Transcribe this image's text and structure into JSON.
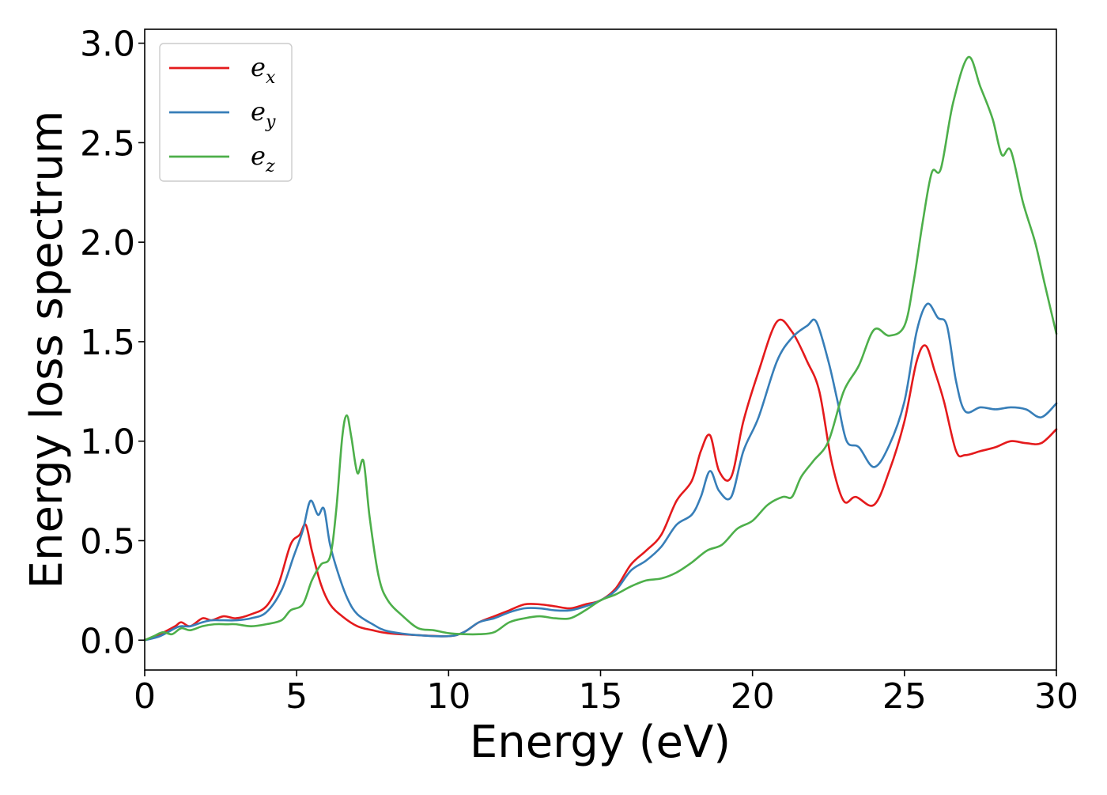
{
  "chart_data": {
    "type": "line",
    "title": "",
    "xlabel": "Energy (eV)",
    "ylabel": "Energy loss spectrum",
    "xlim": [
      0,
      30
    ],
    "ylim": [
      -0.15,
      3.07
    ],
    "xticks": [
      0,
      5,
      10,
      15,
      20,
      25,
      30
    ],
    "xtick_labels": [
      "0",
      "5",
      "10",
      "15",
      "20",
      "25",
      "30"
    ],
    "yticks": [
      0.0,
      0.5,
      1.0,
      1.5,
      2.0,
      2.5,
      3.0
    ],
    "ytick_labels": [
      "0.0",
      "0.5",
      "1.0",
      "1.5",
      "2.0",
      "2.5",
      "3.0"
    ],
    "grid": false,
    "legend_position": "upper-left",
    "series": [
      {
        "name": "e_x",
        "label_base": "e",
        "label_sub": "x",
        "color": "#e41a1c",
        "points": [
          [
            0,
            0
          ],
          [
            0.5,
            0.03
          ],
          [
            1,
            0.07
          ],
          [
            1.2,
            0.09
          ],
          [
            1.5,
            0.07
          ],
          [
            1.9,
            0.11
          ],
          [
            2.2,
            0.1
          ],
          [
            2.6,
            0.12
          ],
          [
            3,
            0.11
          ],
          [
            3.5,
            0.13
          ],
          [
            4,
            0.17
          ],
          [
            4.4,
            0.28
          ],
          [
            4.8,
            0.48
          ],
          [
            5.1,
            0.53
          ],
          [
            5.3,
            0.58
          ],
          [
            5.5,
            0.45
          ],
          [
            5.8,
            0.28
          ],
          [
            6.1,
            0.18
          ],
          [
            6.5,
            0.12
          ],
          [
            7,
            0.07
          ],
          [
            7.5,
            0.05
          ],
          [
            8,
            0.035
          ],
          [
            9,
            0.025
          ],
          [
            10,
            0.02
          ],
          [
            10.5,
            0.04
          ],
          [
            11,
            0.09
          ],
          [
            11.5,
            0.12
          ],
          [
            12,
            0.15
          ],
          [
            12.5,
            0.18
          ],
          [
            13,
            0.18
          ],
          [
            13.5,
            0.17
          ],
          [
            14,
            0.16
          ],
          [
            14.5,
            0.18
          ],
          [
            15,
            0.2
          ],
          [
            15.5,
            0.26
          ],
          [
            16,
            0.38
          ],
          [
            16.5,
            0.45
          ],
          [
            17,
            0.53
          ],
          [
            17.5,
            0.7
          ],
          [
            18,
            0.8
          ],
          [
            18.3,
            0.95
          ],
          [
            18.6,
            1.03
          ],
          [
            18.9,
            0.85
          ],
          [
            19.3,
            0.82
          ],
          [
            19.7,
            1.1
          ],
          [
            20.2,
            1.35
          ],
          [
            20.8,
            1.6
          ],
          [
            21.3,
            1.55
          ],
          [
            21.8,
            1.4
          ],
          [
            22.2,
            1.25
          ],
          [
            22.6,
            0.9
          ],
          [
            23,
            0.7
          ],
          [
            23.4,
            0.72
          ],
          [
            24,
            0.68
          ],
          [
            24.5,
            0.85
          ],
          [
            25,
            1.1
          ],
          [
            25.4,
            1.4
          ],
          [
            25.7,
            1.48
          ],
          [
            26,
            1.35
          ],
          [
            26.3,
            1.2
          ],
          [
            26.7,
            0.95
          ],
          [
            27,
            0.93
          ],
          [
            27.5,
            0.95
          ],
          [
            28,
            0.97
          ],
          [
            28.5,
            1.0
          ],
          [
            29,
            0.99
          ],
          [
            29.5,
            0.99
          ],
          [
            30,
            1.06
          ]
        ]
      },
      {
        "name": "e_y",
        "label_base": "e",
        "label_sub": "y",
        "color": "#377eb8",
        "points": [
          [
            0,
            0
          ],
          [
            0.5,
            0.02
          ],
          [
            1,
            0.06
          ],
          [
            1.2,
            0.07
          ],
          [
            1.5,
            0.07
          ],
          [
            1.9,
            0.09
          ],
          [
            2.2,
            0.1
          ],
          [
            2.6,
            0.1
          ],
          [
            3,
            0.1
          ],
          [
            3.5,
            0.11
          ],
          [
            4,
            0.14
          ],
          [
            4.5,
            0.25
          ],
          [
            4.9,
            0.42
          ],
          [
            5.2,
            0.55
          ],
          [
            5.45,
            0.7
          ],
          [
            5.7,
            0.63
          ],
          [
            5.9,
            0.66
          ],
          [
            6.1,
            0.48
          ],
          [
            6.4,
            0.32
          ],
          [
            6.7,
            0.2
          ],
          [
            7,
            0.13
          ],
          [
            7.5,
            0.08
          ],
          [
            8,
            0.045
          ],
          [
            9,
            0.025
          ],
          [
            10,
            0.02
          ],
          [
            10.5,
            0.04
          ],
          [
            11,
            0.09
          ],
          [
            11.5,
            0.11
          ],
          [
            12,
            0.14
          ],
          [
            12.5,
            0.16
          ],
          [
            13,
            0.16
          ],
          [
            13.5,
            0.15
          ],
          [
            14,
            0.15
          ],
          [
            14.5,
            0.17
          ],
          [
            15,
            0.2
          ],
          [
            15.5,
            0.25
          ],
          [
            16,
            0.35
          ],
          [
            16.5,
            0.4
          ],
          [
            17,
            0.47
          ],
          [
            17.5,
            0.58
          ],
          [
            18,
            0.63
          ],
          [
            18.3,
            0.72
          ],
          [
            18.6,
            0.85
          ],
          [
            18.9,
            0.75
          ],
          [
            19.3,
            0.72
          ],
          [
            19.7,
            0.95
          ],
          [
            20.2,
            1.12
          ],
          [
            20.8,
            1.4
          ],
          [
            21.3,
            1.52
          ],
          [
            21.8,
            1.58
          ],
          [
            22.1,
            1.6
          ],
          [
            22.5,
            1.4
          ],
          [
            22.8,
            1.2
          ],
          [
            23.1,
            1.0
          ],
          [
            23.5,
            0.97
          ],
          [
            24,
            0.87
          ],
          [
            24.5,
            0.98
          ],
          [
            25,
            1.2
          ],
          [
            25.4,
            1.55
          ],
          [
            25.75,
            1.69
          ],
          [
            26.1,
            1.62
          ],
          [
            26.4,
            1.58
          ],
          [
            26.7,
            1.3
          ],
          [
            27,
            1.15
          ],
          [
            27.5,
            1.17
          ],
          [
            28,
            1.16
          ],
          [
            28.5,
            1.17
          ],
          [
            29,
            1.16
          ],
          [
            29.5,
            1.12
          ],
          [
            30,
            1.19
          ]
        ]
      },
      {
        "name": "e_z",
        "label_base": "e",
        "label_sub": "z",
        "color": "#4daf4a",
        "points": [
          [
            0,
            0
          ],
          [
            0.3,
            0.02
          ],
          [
            0.6,
            0.04
          ],
          [
            0.9,
            0.03
          ],
          [
            1.2,
            0.06
          ],
          [
            1.5,
            0.05
          ],
          [
            1.9,
            0.07
          ],
          [
            2.3,
            0.08
          ],
          [
            2.7,
            0.08
          ],
          [
            3,
            0.08
          ],
          [
            3.5,
            0.07
          ],
          [
            4,
            0.08
          ],
          [
            4.5,
            0.1
          ],
          [
            4.8,
            0.15
          ],
          [
            5.2,
            0.18
          ],
          [
            5.5,
            0.3
          ],
          [
            5.8,
            0.38
          ],
          [
            6.1,
            0.42
          ],
          [
            6.3,
            0.65
          ],
          [
            6.5,
            1.02
          ],
          [
            6.65,
            1.13
          ],
          [
            6.8,
            1.02
          ],
          [
            7.0,
            0.84
          ],
          [
            7.2,
            0.9
          ],
          [
            7.4,
            0.62
          ],
          [
            7.7,
            0.32
          ],
          [
            8,
            0.2
          ],
          [
            8.5,
            0.12
          ],
          [
            9,
            0.06
          ],
          [
            9.5,
            0.05
          ],
          [
            10,
            0.035
          ],
          [
            10.5,
            0.03
          ],
          [
            11,
            0.03
          ],
          [
            11.5,
            0.04
          ],
          [
            12,
            0.09
          ],
          [
            12.5,
            0.11
          ],
          [
            13,
            0.12
          ],
          [
            13.5,
            0.11
          ],
          [
            14,
            0.11
          ],
          [
            14.5,
            0.15
          ],
          [
            15,
            0.2
          ],
          [
            15.5,
            0.23
          ],
          [
            16,
            0.27
          ],
          [
            16.5,
            0.3
          ],
          [
            17,
            0.31
          ],
          [
            17.5,
            0.34
          ],
          [
            18,
            0.39
          ],
          [
            18.5,
            0.45
          ],
          [
            19,
            0.48
          ],
          [
            19.5,
            0.56
          ],
          [
            20,
            0.6
          ],
          [
            20.5,
            0.68
          ],
          [
            21,
            0.72
          ],
          [
            21.3,
            0.72
          ],
          [
            21.6,
            0.82
          ],
          [
            22,
            0.9
          ],
          [
            22.5,
            1.0
          ],
          [
            23,
            1.25
          ],
          [
            23.5,
            1.38
          ],
          [
            24,
            1.56
          ],
          [
            24.5,
            1.53
          ],
          [
            25,
            1.58
          ],
          [
            25.3,
            1.8
          ],
          [
            25.6,
            2.1
          ],
          [
            25.9,
            2.35
          ],
          [
            26.2,
            2.37
          ],
          [
            26.6,
            2.7
          ],
          [
            27.1,
            2.93
          ],
          [
            27.5,
            2.78
          ],
          [
            27.9,
            2.62
          ],
          [
            28.2,
            2.44
          ],
          [
            28.5,
            2.46
          ],
          [
            28.9,
            2.2
          ],
          [
            29.3,
            2.0
          ],
          [
            29.6,
            1.8
          ],
          [
            30,
            1.54
          ]
        ]
      }
    ]
  }
}
